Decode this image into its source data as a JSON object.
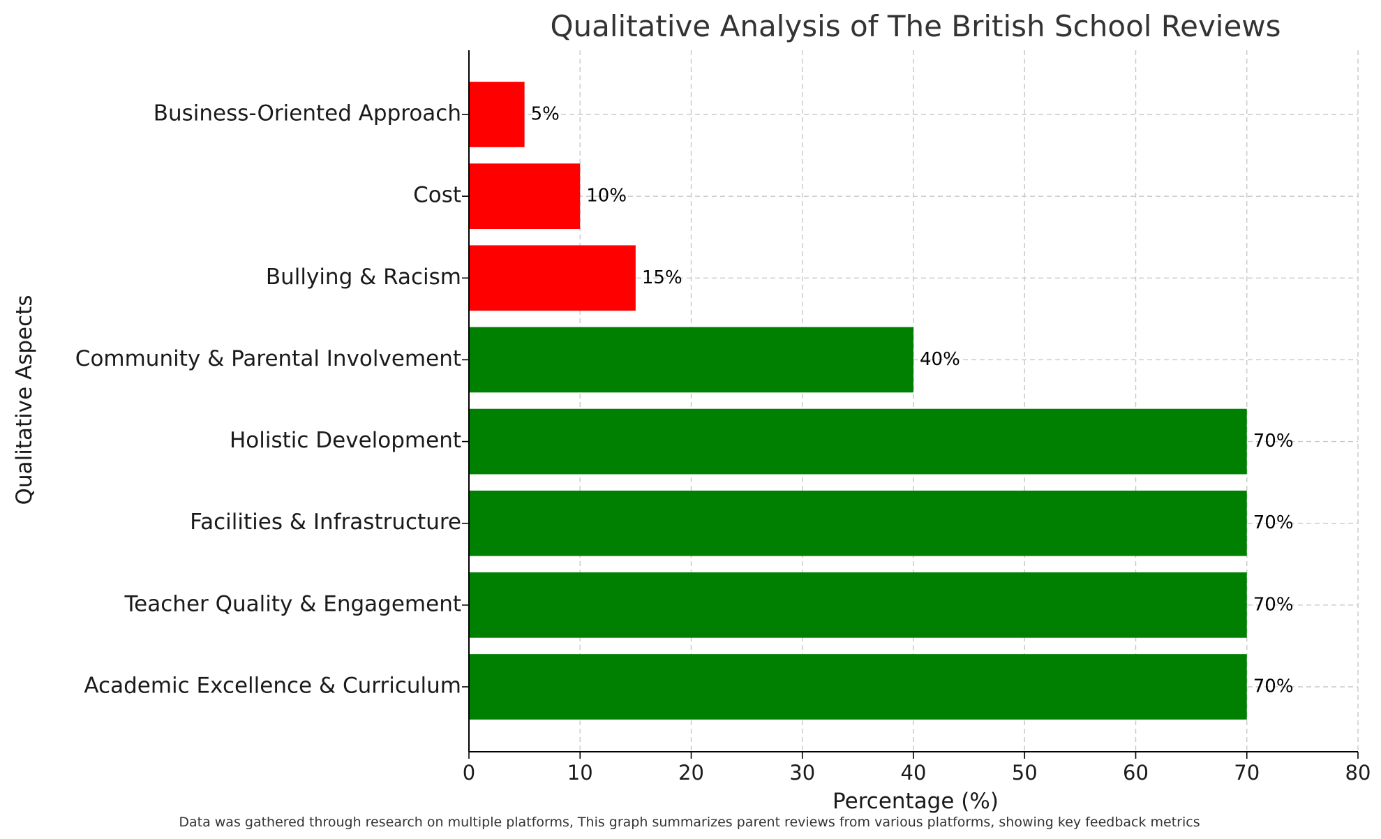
{
  "chart_data": {
    "type": "bar",
    "orientation": "horizontal",
    "title": "Qualitative Analysis of The British School Reviews",
    "xlabel": "Percentage (%)",
    "ylabel": "Qualitative Aspects",
    "xlim": [
      0,
      80
    ],
    "xticks": [
      0,
      10,
      20,
      30,
      40,
      50,
      60,
      70,
      80
    ],
    "grid": true,
    "categories": [
      "Academic Excellence & Curriculum",
      "Teacher Quality & Engagement",
      "Facilities & Infrastructure",
      "Holistic Development",
      "Community & Parental Involvement",
      "Bullying & Racism",
      "Cost",
      "Business-Oriented Approach"
    ],
    "values": [
      70,
      70,
      70,
      70,
      40,
      15,
      10,
      5
    ],
    "value_labels": [
      "70%",
      "70%",
      "70%",
      "70%",
      "40%",
      "15%",
      "10%",
      "5%"
    ],
    "bar_colors": [
      "#008000",
      "#008000",
      "#008000",
      "#008000",
      "#008000",
      "#ff0000",
      "#ff0000",
      "#ff0000"
    ],
    "caption": "Data was gathered through research on multiple platforms, This graph summarizes parent reviews from various platforms, showing key feedback metrics"
  }
}
